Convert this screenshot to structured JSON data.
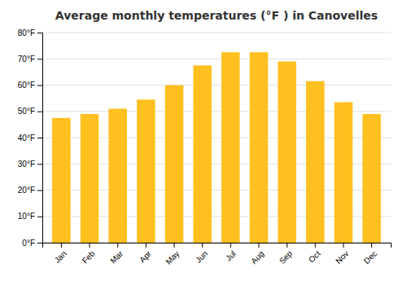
{
  "chart_data": {
    "type": "bar",
    "title": "Average monthly temperatures (°F ) in Canovelles",
    "categories": [
      "Jan",
      "Feb",
      "Mar",
      "Apr",
      "May",
      "Jun",
      "Jul",
      "Aug",
      "Sep",
      "Oct",
      "Nov",
      "Dec"
    ],
    "values": [
      47.5,
      49.0,
      51.0,
      54.5,
      60.0,
      67.5,
      72.5,
      72.5,
      69.0,
      61.5,
      53.5,
      49.0
    ],
    "color": "#FFC020",
    "ylim": [
      0,
      80
    ],
    "yticks": [
      {
        "value": 0,
        "label": "0°F"
      },
      {
        "value": 10,
        "label": "10°F"
      },
      {
        "value": 20,
        "label": "20°F"
      },
      {
        "value": 30,
        "label": "30°F"
      },
      {
        "value": 40,
        "label": "40°F"
      },
      {
        "value": 50,
        "label": "50°F"
      },
      {
        "value": 60,
        "label": "60°F"
      },
      {
        "value": 70,
        "label": "70°F"
      },
      {
        "value": 80,
        "label": "80°F"
      }
    ],
    "grid": true
  }
}
